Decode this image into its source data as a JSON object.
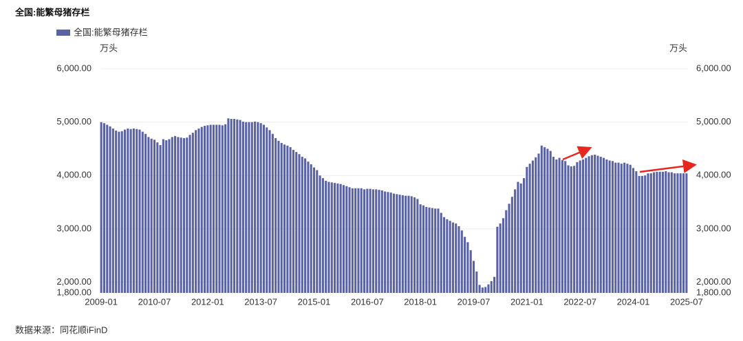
{
  "chart_data": {
    "type": "bar",
    "title": "全国:能繁母猪存栏",
    "source": "数据来源：同花顺iFinD",
    "y_unit": "万头",
    "y2_unit": "万头",
    "categories": [
      "2009-01",
      null,
      null,
      null,
      null,
      null,
      null,
      null,
      null,
      null,
      null,
      null,
      null,
      null,
      null,
      null,
      null,
      null,
      "2010-07",
      null,
      null,
      null,
      null,
      null,
      null,
      null,
      null,
      null,
      null,
      null,
      null,
      null,
      null,
      null,
      null,
      null,
      "2012-01",
      null,
      null,
      null,
      null,
      null,
      null,
      null,
      null,
      null,
      null,
      null,
      null,
      null,
      null,
      null,
      null,
      null,
      "2013-07",
      null,
      null,
      null,
      null,
      null,
      null,
      null,
      null,
      null,
      null,
      null,
      null,
      null,
      null,
      null,
      null,
      null,
      "2015-01",
      null,
      null,
      null,
      null,
      null,
      null,
      null,
      null,
      null,
      null,
      null,
      null,
      null,
      null,
      null,
      null,
      null,
      "2016-07",
      null,
      null,
      null,
      null,
      null,
      null,
      null,
      null,
      null,
      null,
      null,
      null,
      null,
      null,
      null,
      null,
      null,
      "2018-01",
      null,
      null,
      null,
      null,
      null,
      null,
      null,
      null,
      null,
      null,
      null,
      null,
      null,
      null,
      null,
      null,
      null,
      "2019-07",
      null,
      null,
      null,
      null,
      null,
      null,
      null,
      null,
      null,
      null,
      null,
      null,
      null,
      null,
      null,
      null,
      null,
      "2021-01",
      null,
      null,
      null,
      null,
      null,
      null,
      null,
      null,
      null,
      null,
      null,
      null,
      null,
      null,
      null,
      null,
      null,
      "2022-07",
      null,
      null,
      null,
      null,
      null,
      null,
      null,
      null,
      null,
      null,
      null,
      null,
      null,
      null,
      null,
      null,
      null,
      "2024-01",
      null,
      null,
      null,
      null,
      null,
      null,
      null,
      null,
      null,
      null,
      null,
      null,
      null,
      null,
      null,
      null,
      null,
      "2025-07"
    ],
    "series": [
      {
        "name": "全国:能繁母猪存栏",
        "color": "#5a62a6",
        "values": [
          5000,
          4980,
          4950,
          4920,
          4880,
          4840,
          4820,
          4830,
          4860,
          4880,
          4870,
          4880,
          4870,
          4860,
          4820,
          4780,
          4720,
          4690,
          4670,
          4620,
          4570,
          4680,
          4660,
          4680,
          4720,
          4740,
          4720,
          4710,
          4700,
          4710,
          4760,
          4800,
          4850,
          4880,
          4910,
          4930,
          4940,
          4950,
          4950,
          4950,
          4950,
          4940,
          4960,
          5070,
          5060,
          5060,
          5050,
          5040,
          5010,
          5000,
          5000,
          5000,
          5010,
          5000,
          4980,
          4950,
          4900,
          4850,
          4780,
          4700,
          4650,
          4610,
          4580,
          4560,
          4530,
          4480,
          4440,
          4400,
          4350,
          4320,
          4260,
          4210,
          4150,
          4100,
          4000,
          3950,
          3900,
          3880,
          3870,
          3860,
          3850,
          3840,
          3820,
          3800,
          3780,
          3760,
          3760,
          3760,
          3760,
          3740,
          3750,
          3750,
          3740,
          3740,
          3730,
          3720,
          3700,
          3690,
          3680,
          3660,
          3650,
          3640,
          3630,
          3620,
          3620,
          3610,
          3590,
          3560,
          3460,
          3440,
          3410,
          3400,
          3390,
          3380,
          3380,
          3300,
          3220,
          3180,
          3150,
          3120,
          3100,
          3050,
          2970,
          2850,
          2750,
          2600,
          2400,
          2200,
          1950,
          1900,
          1910,
          1960,
          2020,
          2100,
          3040,
          3100,
          3200,
          3350,
          3470,
          3600,
          3740,
          3880,
          3850,
          3950,
          4160,
          4220,
          4280,
          4340,
          4410,
          4560,
          4530,
          4500,
          4460,
          4350,
          4300,
          4330,
          4290,
          4270,
          4190,
          4170,
          4180,
          4250,
          4280,
          4300,
          4330,
          4360,
          4380,
          4390,
          4370,
          4350,
          4330,
          4300,
          4280,
          4270,
          4240,
          4240,
          4220,
          4240,
          4220,
          4200,
          4140,
          4080,
          3990,
          3990,
          4000,
          4040,
          4040,
          4060,
          4070,
          4070,
          4070,
          4080,
          4060,
          4060,
          4040,
          4040,
          4040,
          4040,
          4040
        ]
      }
    ],
    "ylim": [
      1800,
      6000
    ],
    "yticks": [
      {
        "value": 1800,
        "label": "1,800.00"
      },
      {
        "value": 2000,
        "label": "2,000.00"
      },
      {
        "value": 3000,
        "label": "3,000.00"
      },
      {
        "value": 4000,
        "label": "4,000.00"
      },
      {
        "value": 5000,
        "label": "5,000.00"
      },
      {
        "value": 6000,
        "label": "6,000.00"
      }
    ],
    "y2lim": [
      1800,
      6000
    ],
    "y2ticks": [
      {
        "value": 1800,
        "label": "1,800.00"
      },
      {
        "value": 2000,
        "label": "2,000.00"
      },
      {
        "value": 3000,
        "label": "3,000.00"
      },
      {
        "value": 4000,
        "label": "4,000.00"
      },
      {
        "value": 5000,
        "label": "5,000.00"
      },
      {
        "value": 6000,
        "label": "6,000.00"
      }
    ],
    "grid": true
  }
}
